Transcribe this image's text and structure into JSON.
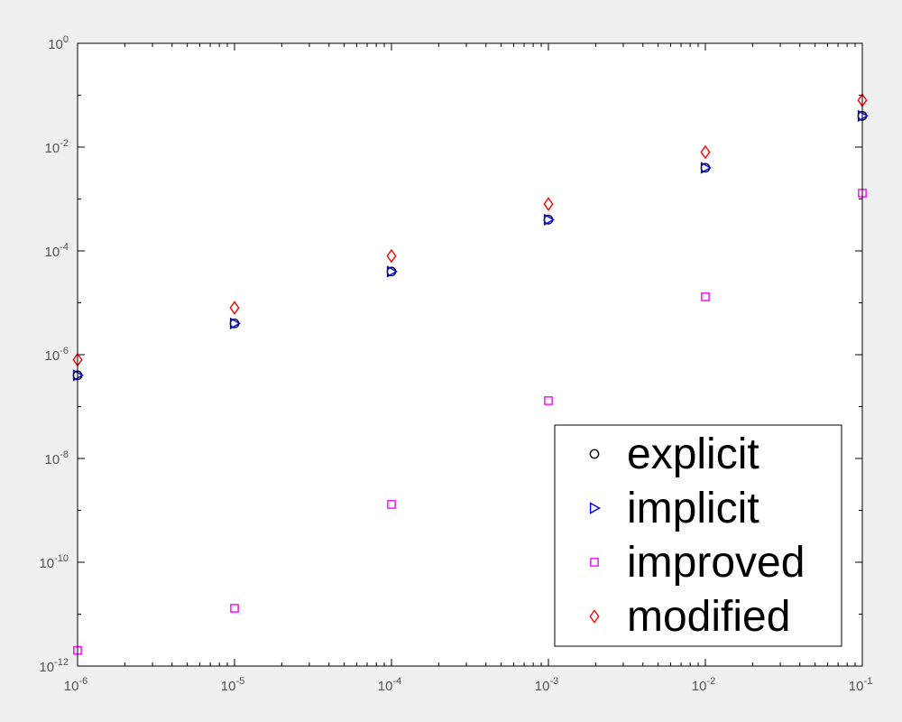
{
  "chart_data": {
    "type": "scatter",
    "title": "",
    "xlabel": "",
    "ylabel": "",
    "x_scale": "log",
    "y_scale": "log",
    "xlim": [
      1e-06,
      0.1
    ],
    "ylim": [
      1e-12,
      1
    ],
    "grid": false,
    "legend_position": "bottom-right",
    "x": [
      1e-06,
      1e-05,
      0.0001,
      0.001,
      0.01,
      0.1
    ],
    "x_ticks": [
      {
        "base": "10",
        "exp": "-6",
        "value": 1e-06
      },
      {
        "base": "10",
        "exp": "-5",
        "value": 1e-05
      },
      {
        "base": "10",
        "exp": "-4",
        "value": 0.0001
      },
      {
        "base": "10",
        "exp": "-3",
        "value": 0.001
      },
      {
        "base": "10",
        "exp": "-2",
        "value": 0.01
      },
      {
        "base": "10",
        "exp": "-1",
        "value": 0.1
      }
    ],
    "y_ticks": [
      {
        "base": "10",
        "exp": "0",
        "value": 1
      },
      {
        "base": "10",
        "exp": "-2",
        "value": 0.01
      },
      {
        "base": "10",
        "exp": "-4",
        "value": 0.0001
      },
      {
        "base": "10",
        "exp": "-6",
        "value": 1e-06
      },
      {
        "base": "10",
        "exp": "-8",
        "value": 1e-08
      },
      {
        "base": "10",
        "exp": "-10",
        "value": 1e-10
      },
      {
        "base": "10",
        "exp": "-12",
        "value": 1e-12
      }
    ],
    "series": [
      {
        "name": "explicit",
        "marker": "circle",
        "color": "#000000",
        "values": [
          4e-07,
          4e-06,
          4e-05,
          0.0004,
          0.004,
          0.04
        ]
      },
      {
        "name": "implicit",
        "marker": "triangle-right",
        "color": "#0000ff",
        "values": [
          4e-07,
          4e-06,
          4e-05,
          0.0004,
          0.004,
          0.04
        ]
      },
      {
        "name": "improved",
        "marker": "square",
        "color": "#ff00ff",
        "values": [
          2e-12,
          1.3e-11,
          1.3e-09,
          1.3e-07,
          1.3e-05,
          0.0013
        ]
      },
      {
        "name": "modified",
        "marker": "diamond",
        "color": "#ff0000",
        "values": [
          8e-07,
          8e-06,
          8e-05,
          0.0008,
          0.008,
          0.08
        ]
      }
    ]
  }
}
